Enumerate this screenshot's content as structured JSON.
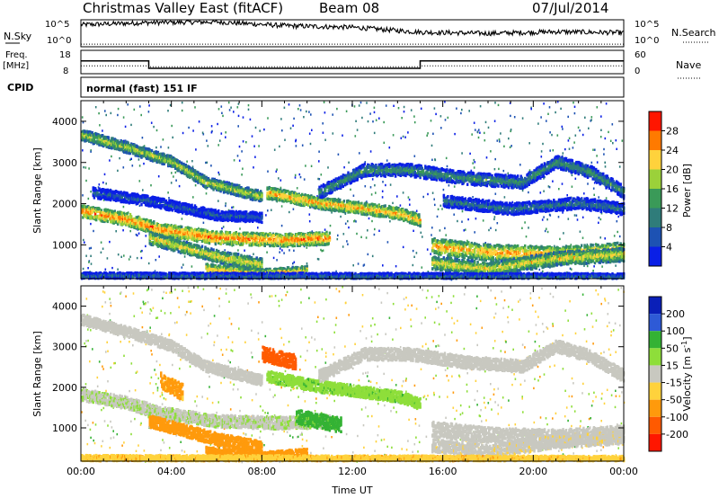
{
  "header": {
    "title": "Christmas Valley East (fitACF)",
    "beam": "Beam 08",
    "date": "07/Jul/2014"
  },
  "panels": {
    "nsky_label": "N.Sky",
    "nsearch_label": "N.Search",
    "count_ticks": [
      "10^5",
      "10^0"
    ],
    "freq_label_1": "Freq.",
    "freq_label_2": "[MHz]",
    "freq_ticks": [
      "18",
      "8"
    ],
    "nave_label": "Nave",
    "nave_ticks": [
      "60",
      "0"
    ],
    "cpid_label": "CPID",
    "cpid_text": "normal (fast) 151 IF"
  },
  "colors": {
    "power": [
      "#0a1fe6",
      "#1d52b3",
      "#2f7c7a",
      "#3a9a58",
      "#9bd13a",
      "#ffd23c",
      "#ff7a00",
      "#ff1600"
    ],
    "velocity": [
      "#0a1fb8",
      "#2e5ad6",
      "#34b234",
      "#8ede3a",
      "#c8c8c0",
      "#ffd23c",
      "#ff9a0c",
      "#ff5a00",
      "#ff1600"
    ],
    "velocity_ticks_color": "#000000"
  },
  "chart_data": [
    {
      "type": "line",
      "name": "N.Sky / N.Search",
      "yscale": "log",
      "ylim": [
        1,
        100000
      ],
      "x": [
        "00:00",
        "03:00",
        "06:00",
        "09:00",
        "12:00",
        "15:00",
        "18:00",
        "21:00",
        "24:00"
      ],
      "series": [
        {
          "name": "N.Sky",
          "values": [
            12000,
            30000,
            40000,
            8000,
            4000,
            500,
            300,
            600,
            400
          ]
        },
        {
          "name": "N.Search",
          "values": [
            3,
            3,
            3,
            3,
            3,
            3,
            3,
            3,
            3
          ]
        }
      ]
    },
    {
      "type": "line",
      "name": "Freq / Nave",
      "x": [
        "00:00",
        "03:00",
        "03:00",
        "15:00",
        "15:00",
        "24:00"
      ],
      "series": [
        {
          "name": "Freq.",
          "values": [
            13.5,
            13.5,
            10.3,
            10.3,
            13.5,
            13.5
          ]
        },
        {
          "name": "Nave",
          "values": [
            20,
            20,
            18,
            18,
            20,
            20
          ]
        }
      ],
      "ylim_left": [
        8,
        18
      ],
      "ylim_right": [
        0,
        60
      ]
    },
    {
      "type": "heatmap",
      "name": "Power",
      "xlabel": "",
      "ylabel": "Slant Range [km]",
      "xlim": [
        0,
        24
      ],
      "ylim": [
        180,
        4500
      ],
      "yticks": [
        1000,
        2000,
        3000,
        4000
      ],
      "colorbar": {
        "label": "Power [dB]",
        "ticks": [
          4,
          8,
          12,
          16,
          20,
          24,
          28
        ],
        "range": [
          0,
          32
        ]
      },
      "bands": [
        {
          "path": [
            [
              0,
              3700
            ],
            [
              2,
              3400
            ],
            [
              4,
              3050
            ],
            [
              5.5,
              2550
            ],
            [
              8,
              2200
            ]
          ],
          "width": 130,
          "value": 20
        },
        {
          "path": [
            [
              0,
              1850
            ],
            [
              2,
              1650
            ],
            [
              3.5,
              1400
            ],
            [
              6,
              1200
            ],
            [
              9,
              1150
            ],
            [
              11,
              1200
            ]
          ],
          "width": 150,
          "value": 27
        },
        {
          "path": [
            [
              3,
              1200
            ],
            [
              6,
              750
            ],
            [
              8,
              550
            ]
          ],
          "width": 150,
          "value": 22
        },
        {
          "path": [
            [
              5.5,
              450
            ],
            [
              8,
              320
            ],
            [
              10,
              400
            ]
          ],
          "width": 120,
          "value": 24
        },
        {
          "path": [
            [
              8.2,
              2300
            ],
            [
              10.5,
              2050
            ],
            [
              12,
              1950
            ],
            [
              14,
              1800
            ],
            [
              15,
              1620
            ]
          ],
          "width": 140,
          "value": 25
        },
        {
          "path": [
            [
              10.5,
              2300
            ],
            [
              12.5,
              2850
            ],
            [
              14.5,
              2850
            ],
            [
              17,
              2650
            ],
            [
              19.5,
              2550
            ],
            [
              21,
              3050
            ],
            [
              22.5,
              2800
            ],
            [
              24,
              2300
            ]
          ],
          "width": 150,
          "value": 14
        },
        {
          "path": [
            [
              15.5,
              1000
            ],
            [
              18,
              850
            ],
            [
              21,
              800
            ],
            [
              24,
              900
            ]
          ],
          "width": 190,
          "value": 25
        },
        {
          "path": [
            [
              15.5,
              600
            ],
            [
              18,
              450
            ],
            [
              21,
              700
            ],
            [
              24,
              800
            ]
          ],
          "width": 160,
          "value": 22
        },
        {
          "path": [
            [
              16,
              2100
            ],
            [
              19,
              1900
            ],
            [
              22,
              2050
            ],
            [
              24,
              1900
            ]
          ],
          "width": 140,
          "value": 11
        },
        {
          "path": [
            [
              0.5,
              2300
            ],
            [
              3,
              2100
            ],
            [
              6,
              1750
            ],
            [
              8,
              1700
            ]
          ],
          "width": 120,
          "value": 9
        },
        {
          "path": [
            [
              0,
              280
            ],
            [
              12,
              270
            ],
            [
              24,
              260
            ]
          ],
          "width": 80,
          "value": 10
        }
      ]
    },
    {
      "type": "heatmap",
      "name": "Velocity",
      "xlabel": "Time UT",
      "ylabel": "Slant Range [km]",
      "xlim": [
        0,
        24
      ],
      "ylim": [
        180,
        4500
      ],
      "xticks": [
        "00:00",
        "04:00",
        "08:00",
        "12:00",
        "16:00",
        "20:00",
        "00:00"
      ],
      "yticks": [
        1000,
        2000,
        3000,
        4000
      ],
      "colorbar": {
        "label": "Velocity [m s-1]",
        "ticks": [
          200,
          100,
          50,
          15,
          -15,
          -50,
          -100,
          -200
        ]
      },
      "bands": [
        {
          "path": [
            [
              0,
              3700
            ],
            [
              2,
              3400
            ],
            [
              4,
              3050
            ],
            [
              5.5,
              2550
            ],
            [
              8,
              2200
            ]
          ],
          "width": 130,
          "value": 0
        },
        {
          "path": [
            [
              0,
              1850
            ],
            [
              2,
              1650
            ],
            [
              3.5,
              1400
            ],
            [
              6,
              1200
            ],
            [
              9,
              1150
            ],
            [
              11,
              1200
            ]
          ],
          "width": 150,
          "value": 10
        },
        {
          "path": [
            [
              3,
              1200
            ],
            [
              6,
              750
            ],
            [
              8,
              550
            ]
          ],
          "width": 150,
          "value": -70
        },
        {
          "path": [
            [
              5.5,
              450
            ],
            [
              8,
              320
            ],
            [
              10,
              400
            ]
          ],
          "width": 120,
          "value": -80
        },
        {
          "path": [
            [
              8.2,
              2300
            ],
            [
              10.5,
              2050
            ],
            [
              12,
              1950
            ],
            [
              14,
              1800
            ],
            [
              15,
              1620
            ]
          ],
          "width": 140,
          "value": 40
        },
        {
          "path": [
            [
              10.5,
              2300
            ],
            [
              12.5,
              2850
            ],
            [
              14.5,
              2850
            ],
            [
              17,
              2650
            ],
            [
              19.5,
              2550
            ],
            [
              21,
              3050
            ],
            [
              22.5,
              2800
            ],
            [
              24,
              2300
            ]
          ],
          "width": 150,
          "value": 0
        },
        {
          "path": [
            [
              15.5,
              1000
            ],
            [
              18,
              850
            ],
            [
              21,
              800
            ],
            [
              24,
              900
            ]
          ],
          "width": 190,
          "value": 0
        },
        {
          "path": [
            [
              15.5,
              600
            ],
            [
              18,
              450
            ],
            [
              21,
              700
            ],
            [
              24,
              800
            ]
          ],
          "width": 160,
          "value": -5
        },
        {
          "path": [
            [
              8,
              2850
            ],
            [
              9.5,
              2650
            ]
          ],
          "width": 180,
          "value": -180
        },
        {
          "path": [
            [
              3.5,
              2200
            ],
            [
              4.5,
              1900
            ]
          ],
          "width": 200,
          "value": -60
        },
        {
          "path": [
            [
              9.5,
              1300
            ],
            [
              11.5,
              1100
            ]
          ],
          "width": 180,
          "value": 60
        },
        {
          "path": [
            [
              0,
              280
            ],
            [
              12,
              270
            ],
            [
              24,
              260
            ]
          ],
          "width": 80,
          "value": -40
        }
      ]
    }
  ]
}
